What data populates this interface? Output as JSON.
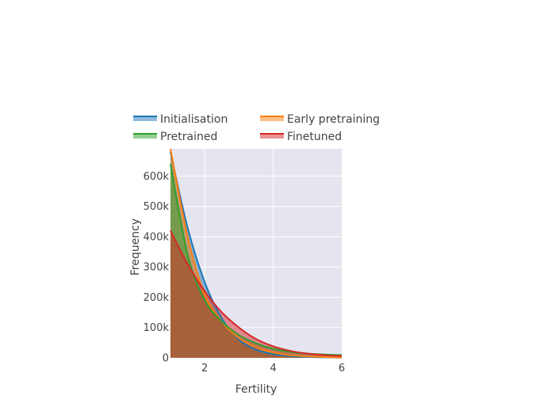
{
  "chart_data": {
    "type": "area",
    "xlabel": "Fertility",
    "ylabel": "Frequency",
    "xlim": [
      1,
      6
    ],
    "ylim": [
      0,
      690000
    ],
    "x_ticks": [
      2,
      4,
      6
    ],
    "x_tick_labels": [
      "2",
      "4",
      "6"
    ],
    "y_ticks": [
      0,
      100000,
      200000,
      300000,
      400000,
      500000,
      600000
    ],
    "y_tick_labels": [
      "0",
      "100k",
      "200k",
      "300k",
      "400k",
      "500k",
      "600k"
    ],
    "grid": true,
    "legend_position": "top",
    "series": [
      {
        "name": "Initialisation",
        "color": "#1f77b4",
        "x": [
          1,
          1.5,
          2,
          2.5,
          3,
          3.5,
          4,
          4.5,
          5,
          5.5,
          6
        ],
        "y": [
          680000,
          430000,
          250000,
          130000,
          60000,
          27000,
          12000,
          6000,
          3000,
          1500,
          800
        ]
      },
      {
        "name": "Early pretraining",
        "color": "#ff7f0e",
        "x": [
          1,
          1.5,
          2,
          2.5,
          3,
          3.5,
          4,
          4.5,
          5,
          5.5,
          6
        ],
        "y": [
          690000,
          400000,
          210000,
          120000,
          65000,
          35000,
          18000,
          9000,
          5000,
          2500,
          1200
        ]
      },
      {
        "name": "Pretrained",
        "color": "#2ca02c",
        "x": [
          1,
          1.5,
          2,
          2.5,
          3,
          3.5,
          4,
          4.5,
          5,
          5.5,
          6
        ],
        "y": [
          640000,
          340000,
          190000,
          120000,
          75000,
          48000,
          30000,
          20000,
          14000,
          11000,
          9000
        ]
      },
      {
        "name": "Finetuned",
        "color": "#d62728",
        "x": [
          1,
          1.5,
          2,
          2.5,
          3,
          3.5,
          4,
          4.5,
          5,
          5.5,
          6
        ],
        "y": [
          420000,
          310000,
          220000,
          150000,
          100000,
          62000,
          38000,
          23000,
          14000,
          9000,
          6000
        ]
      }
    ]
  }
}
